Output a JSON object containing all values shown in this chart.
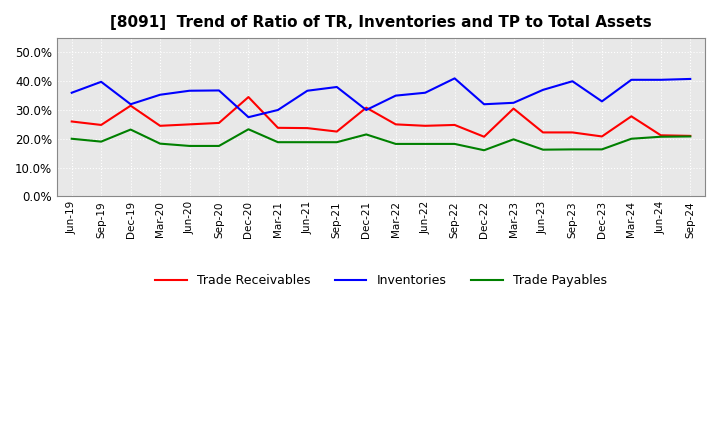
{
  "title": "[8091]  Trend of Ratio of TR, Inventories and TP to Total Assets",
  "x_labels": [
    "Jun-19",
    "Sep-19",
    "Dec-19",
    "Mar-20",
    "Jun-20",
    "Sep-20",
    "Dec-20",
    "Mar-21",
    "Jun-21",
    "Sep-21",
    "Dec-21",
    "Mar-22",
    "Jun-22",
    "Sep-22",
    "Dec-22",
    "Mar-23",
    "Jun-23",
    "Sep-23",
    "Dec-23",
    "Mar-24",
    "Jun-24",
    "Sep-24"
  ],
  "trade_receivables": [
    0.26,
    0.248,
    0.315,
    0.245,
    0.25,
    0.255,
    0.345,
    0.238,
    0.237,
    0.225,
    0.308,
    0.25,
    0.245,
    0.248,
    0.207,
    0.305,
    0.222,
    0.222,
    0.208,
    0.278,
    0.212,
    0.21
  ],
  "inventories": [
    0.36,
    0.398,
    0.32,
    0.353,
    0.367,
    0.368,
    0.275,
    0.3,
    0.367,
    0.38,
    0.3,
    0.35,
    0.36,
    0.41,
    0.32,
    0.325,
    0.37,
    0.4,
    0.33,
    0.405,
    0.405,
    0.408
  ],
  "trade_payables": [
    0.2,
    0.19,
    0.232,
    0.183,
    0.175,
    0.175,
    0.233,
    0.188,
    0.188,
    0.188,
    0.215,
    0.182,
    0.182,
    0.182,
    0.16,
    0.198,
    0.162,
    0.163,
    0.163,
    0.2,
    0.207,
    0.208
  ],
  "ylim": [
    0.0,
    0.55
  ],
  "yticks": [
    0.0,
    0.1,
    0.2,
    0.3,
    0.4,
    0.5
  ],
  "colors": {
    "trade_receivables": "#ff0000",
    "inventories": "#0000ff",
    "trade_payables": "#008000"
  },
  "figure_bg": "#ffffff",
  "plot_bg": "#e8e8e8",
  "grid_color": "#ffffff",
  "legend_labels": [
    "Trade Receivables",
    "Inventories",
    "Trade Payables"
  ]
}
